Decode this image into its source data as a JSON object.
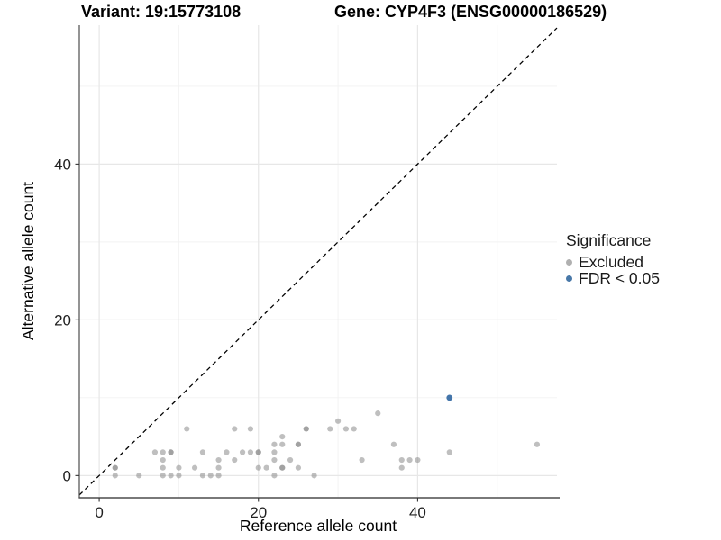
{
  "titles": {
    "variant": "Variant: 19:15773108",
    "gene": "Gene: CYP4F3 (ENSG00000186529)"
  },
  "legend": {
    "title": "Significance",
    "items": [
      {
        "label": "Excluded",
        "color": "#b0b0b0"
      },
      {
        "label": "FDR < 0.05",
        "color": "#4878a8"
      }
    ]
  },
  "chart_data": {
    "type": "scatter",
    "title": "Variant: 19:15773108 — Gene: CYP4F3 (ENSG00000186529)",
    "xlabel": "Reference allele count",
    "ylabel": "Alternative allele count",
    "xticks": [
      0,
      20,
      40
    ],
    "yticks": [
      0,
      20,
      40
    ],
    "xlim": [
      -2.5,
      57.5
    ],
    "ylim": [
      -2.85,
      57.85
    ],
    "grid": {
      "major_x": [
        0,
        20,
        40
      ],
      "minor_x": [
        10,
        30,
        50
      ],
      "major_y": [
        0,
        20,
        40
      ],
      "minor_y": [
        10,
        30,
        50
      ]
    },
    "identity_line": {
      "show": true,
      "style": "dashed",
      "color": "#000000"
    },
    "legend_position": "right",
    "series": [
      {
        "name": "Excluded",
        "color": "#8a8a8a",
        "opacity": 0.55,
        "radius": 3.1,
        "points": [
          [
            2,
            0
          ],
          [
            5,
            0
          ],
          [
            8,
            0
          ],
          [
            9,
            0
          ],
          [
            10,
            0
          ],
          [
            13,
            0
          ],
          [
            14,
            0
          ],
          [
            15,
            0
          ],
          [
            22,
            0
          ],
          [
            27,
            0
          ],
          [
            2,
            1
          ],
          [
            2,
            1
          ],
          [
            8,
            1
          ],
          [
            10,
            1
          ],
          [
            12,
            1
          ],
          [
            15,
            1
          ],
          [
            20,
            1
          ],
          [
            21,
            1
          ],
          [
            23,
            1
          ],
          [
            23,
            1
          ],
          [
            25,
            1
          ],
          [
            38,
            1
          ],
          [
            8,
            2
          ],
          [
            15,
            2
          ],
          [
            17,
            2
          ],
          [
            22,
            2
          ],
          [
            24,
            2
          ],
          [
            33,
            2
          ],
          [
            38,
            2
          ],
          [
            39,
            2
          ],
          [
            40,
            2
          ],
          [
            7,
            3
          ],
          [
            8,
            3
          ],
          [
            9,
            3
          ],
          [
            9,
            3
          ],
          [
            13,
            3
          ],
          [
            16,
            3
          ],
          [
            18,
            3
          ],
          [
            19,
            3
          ],
          [
            20,
            3
          ],
          [
            20,
            3
          ],
          [
            22,
            3
          ],
          [
            44,
            3
          ],
          [
            22,
            4
          ],
          [
            23,
            4
          ],
          [
            25,
            4
          ],
          [
            25,
            4
          ],
          [
            37,
            4
          ],
          [
            55,
            4
          ],
          [
            23,
            5
          ],
          [
            11,
            6
          ],
          [
            17,
            6
          ],
          [
            19,
            6
          ],
          [
            26,
            6
          ],
          [
            26,
            6
          ],
          [
            29,
            6
          ],
          [
            31,
            6
          ],
          [
            32,
            6
          ],
          [
            30,
            7
          ],
          [
            35,
            8
          ]
        ]
      },
      {
        "name": "FDR < 0.05",
        "color": "#3a6ea5",
        "opacity": 0.95,
        "radius": 3.4,
        "points": [
          [
            44,
            10
          ]
        ]
      }
    ]
  }
}
